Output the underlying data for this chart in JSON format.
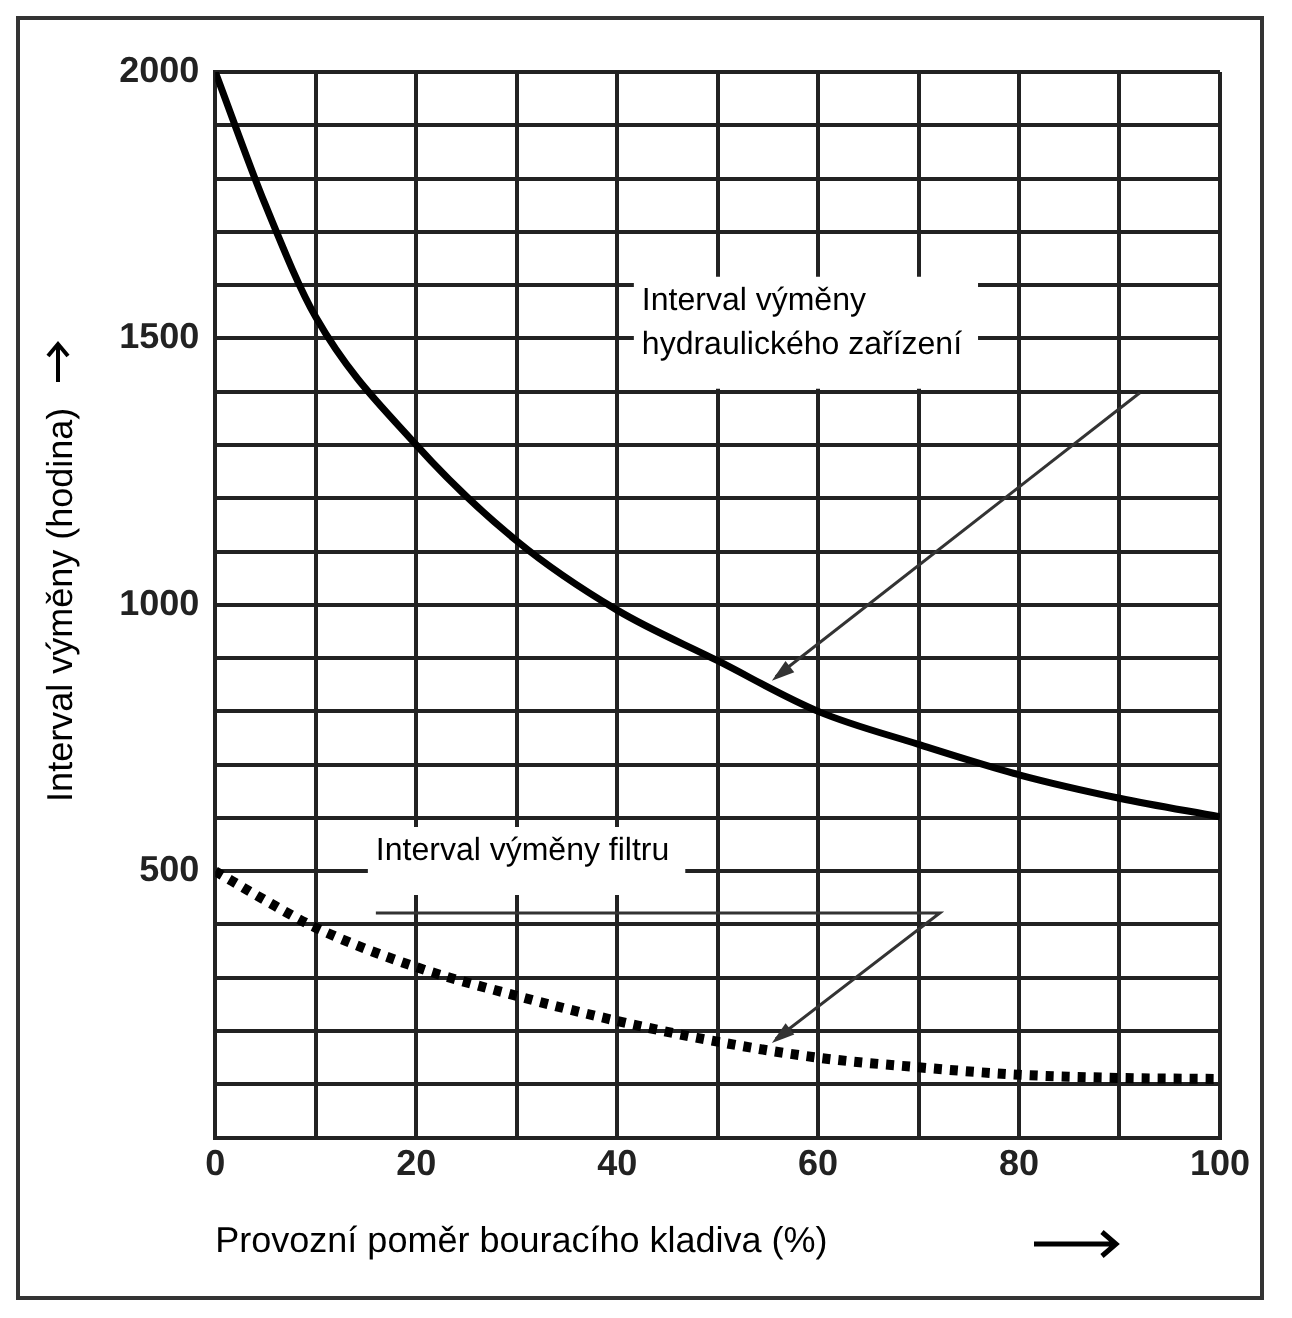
{
  "chart_data": {
    "type": "line",
    "xlabel": "Provozní poměr bouracího kladiva (%)",
    "ylabel": "Interval výměny (hodina)",
    "x": [
      0,
      5,
      10,
      20,
      30,
      40,
      50,
      60,
      70,
      80,
      90,
      100
    ],
    "series": [
      {
        "color": "#000000",
        "line_style": "solid",
        "values": [
          2000,
          1750,
          1540,
          1300,
          1120,
          990,
          895,
          800,
          738,
          681,
          637,
          602
        ]
      },
      {
        "color": "#000000",
        "line_style": "dotted",
        "values": [
          500,
          445,
          394,
          320,
          266,
          219,
          180,
          150,
          132,
          118,
          112,
          110
        ]
      }
    ],
    "xlim": [
      0,
      100
    ],
    "xticks": [
      0,
      {
        "value": 10,
        "label": null
      },
      20,
      {
        "value": 30,
        "label": null
      },
      40,
      {
        "value": 50,
        "label": null
      },
      60,
      {
        "value": 70,
        "label": null
      },
      80,
      {
        "value": 90,
        "label": null
      },
      100
    ],
    "ylim": [
      0,
      2000
    ],
    "yticks": [
      {
        "value": 0,
        "label": null
      },
      {
        "value": 100,
        "label": null
      },
      {
        "value": 200,
        "label": null
      },
      {
        "value": 300,
        "label": null
      },
      {
        "value": 400,
        "label": null
      },
      500,
      {
        "value": 600,
        "label": null
      },
      {
        "value": 700,
        "label": null
      },
      {
        "value": 800,
        "label": null
      },
      {
        "value": 900,
        "label": null
      },
      1000,
      {
        "value": 1100,
        "label": null
      },
      {
        "value": 1200,
        "label": null
      },
      {
        "value": 1300,
        "label": null
      },
      {
        "value": 1400,
        "label": null
      },
      1500,
      {
        "value": 1600,
        "label": null
      },
      {
        "value": 1700,
        "label": null
      },
      {
        "value": 1800,
        "label": null
      },
      {
        "value": 1900,
        "label": null
      },
      2000
    ],
    "annotations": [
      "Interval výměny\nhydraulického zařízení",
      "Interval výměny filtru"
    ],
    "grid": true,
    "legend": false,
    "marker": "none"
  }
}
